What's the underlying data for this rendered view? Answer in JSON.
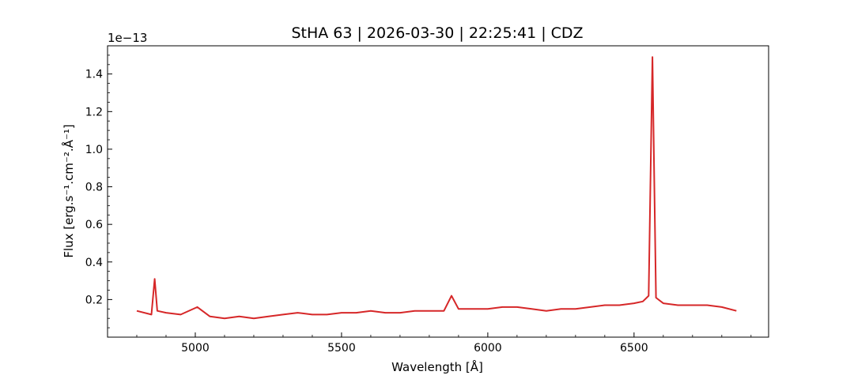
{
  "chart_data": {
    "type": "line",
    "title": "StHA 63 | 2026-03-30 | 22:25:41 | CDZ",
    "xlabel": "Wavelength [Å]",
    "ylabel": "Flux [erg.s⁻¹.cm⁻².Å⁻¹]",
    "y_offset_label": "1e−13",
    "xlim": [
      4700,
      6960
    ],
    "ylim": [
      0.0,
      1.55
    ],
    "x_ticks": [
      5000,
      5500,
      6000,
      6500
    ],
    "x_tick_labels": [
      "5000",
      "5500",
      "6000",
      "6500"
    ],
    "y_ticks": [
      0.2,
      0.4,
      0.6,
      0.8,
      1.0,
      1.2,
      1.4
    ],
    "y_tick_labels": [
      "0.2",
      "0.4",
      "0.6",
      "0.8",
      "1.0",
      "1.2",
      "1.4"
    ],
    "grid": false,
    "line_color": "#d62728",
    "series": [
      {
        "x": [
          4800,
          4850,
          4861,
          4870,
          4900,
          4950,
          5007,
          5050,
          5100,
          5150,
          5200,
          5250,
          5300,
          5350,
          5400,
          5450,
          5500,
          5550,
          5600,
          5650,
          5700,
          5750,
          5800,
          5850,
          5876,
          5900,
          5950,
          6000,
          6050,
          6100,
          6150,
          6200,
          6250,
          6300,
          6350,
          6400,
          6450,
          6500,
          6530,
          6550,
          6563,
          6575,
          6600,
          6650,
          6700,
          6750,
          6800,
          6850
        ],
        "values": [
          0.14,
          0.12,
          0.31,
          0.14,
          0.13,
          0.12,
          0.16,
          0.11,
          0.1,
          0.11,
          0.1,
          0.11,
          0.12,
          0.13,
          0.12,
          0.12,
          0.13,
          0.13,
          0.14,
          0.13,
          0.13,
          0.14,
          0.14,
          0.14,
          0.22,
          0.15,
          0.15,
          0.15,
          0.16,
          0.16,
          0.15,
          0.14,
          0.15,
          0.15,
          0.16,
          0.17,
          0.17,
          0.18,
          0.19,
          0.22,
          1.49,
          0.21,
          0.18,
          0.17,
          0.17,
          0.17,
          0.16,
          0.14
        ]
      }
    ]
  }
}
